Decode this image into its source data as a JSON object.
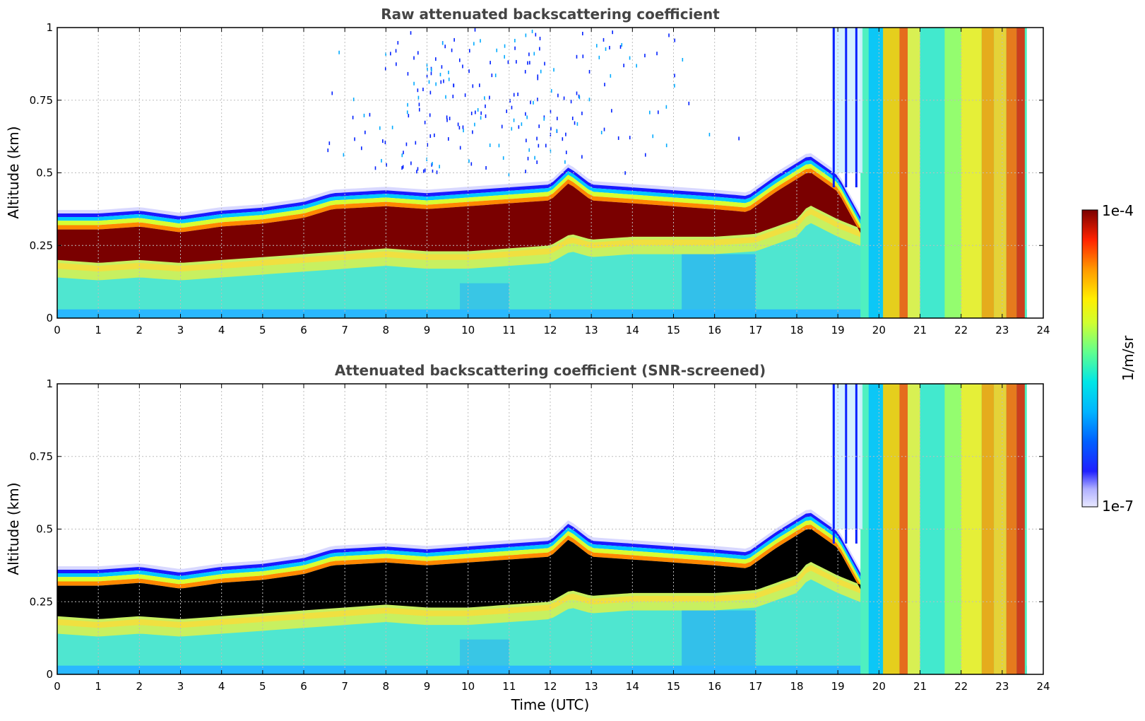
{
  "chart_data": [
    {
      "type": "heatmap",
      "title": "Raw attenuated backscattering coefficient",
      "xlabel": "",
      "ylabel": "Altitude (km)",
      "xlim": [
        0,
        24
      ],
      "ylim": [
        0,
        1
      ],
      "x_ticks": [
        "0",
        "1",
        "2",
        "3",
        "4",
        "5",
        "6",
        "7",
        "8",
        "9",
        "10",
        "11",
        "12",
        "13",
        "14",
        "15",
        "16",
        "17",
        "18",
        "19",
        "20",
        "21",
        "22",
        "23",
        "24"
      ],
      "y_ticks": [
        "0",
        "0.25",
        "0.5",
        "0.75",
        "1"
      ],
      "grid": true,
      "screened": false,
      "layer_top_km": [
        [
          0,
          0.36
        ],
        [
          1,
          0.36
        ],
        [
          2,
          0.37
        ],
        [
          3,
          0.35
        ],
        [
          4,
          0.37
        ],
        [
          5,
          0.38
        ],
        [
          6,
          0.4
        ],
        [
          6.7,
          0.43
        ],
        [
          8,
          0.44
        ],
        [
          9,
          0.43
        ],
        [
          10,
          0.44
        ],
        [
          11,
          0.45
        ],
        [
          12,
          0.46
        ],
        [
          12.45,
          0.52
        ],
        [
          13,
          0.46
        ],
        [
          14,
          0.45
        ],
        [
          15,
          0.44
        ],
        [
          16,
          0.43
        ],
        [
          16.8,
          0.42
        ],
        [
          17.5,
          0.49
        ],
        [
          18.3,
          0.56
        ],
        [
          19,
          0.49
        ],
        [
          19.7,
          0.31
        ]
      ],
      "layer_bottom_km": [
        [
          0,
          0.19
        ],
        [
          1,
          0.18
        ],
        [
          2,
          0.19
        ],
        [
          3,
          0.18
        ],
        [
          4,
          0.19
        ],
        [
          5,
          0.2
        ],
        [
          6,
          0.21
        ],
        [
          7,
          0.22
        ],
        [
          8,
          0.23
        ],
        [
          9,
          0.22
        ],
        [
          10,
          0.22
        ],
        [
          11,
          0.23
        ],
        [
          12,
          0.24
        ],
        [
          12.5,
          0.28
        ],
        [
          13,
          0.26
        ],
        [
          14,
          0.27
        ],
        [
          15,
          0.27
        ],
        [
          16,
          0.27
        ],
        [
          17,
          0.28
        ],
        [
          18,
          0.33
        ],
        [
          18.3,
          0.38
        ],
        [
          19,
          0.33
        ],
        [
          19.7,
          0.29
        ]
      ],
      "precipitation_start_hour": 19.7,
      "precipitation_end_hour": 23.6
    },
    {
      "type": "heatmap",
      "title": "Attenuated backscattering coefficient (SNR-screened)",
      "xlabel": "Time (UTC)",
      "ylabel": "Altitude (km)",
      "xlim": [
        0,
        24
      ],
      "ylim": [
        0,
        1
      ],
      "x_ticks": [
        "0",
        "1",
        "2",
        "3",
        "4",
        "5",
        "6",
        "7",
        "8",
        "9",
        "10",
        "11",
        "12",
        "13",
        "14",
        "15",
        "16",
        "17",
        "18",
        "19",
        "20",
        "21",
        "22",
        "23",
        "24"
      ],
      "y_ticks": [
        "0",
        "0.25",
        "0.5",
        "0.75",
        "1"
      ],
      "grid": true,
      "screened": true
    }
  ],
  "colorbar": {
    "label": "1/m/sr",
    "max_label": "1e-4",
    "min_label": "1e-7",
    "scale": "log",
    "range": [
      1e-07,
      0.0001
    ],
    "colormap": "jet",
    "stops": [
      "#e8e8ff",
      "#b0b0ff",
      "#0000ff",
      "#0066ff",
      "#00ccff",
      "#33ffcc",
      "#99ff66",
      "#ffff00",
      "#ffaa00",
      "#ff4400",
      "#cc0000",
      "#7a0000"
    ]
  }
}
